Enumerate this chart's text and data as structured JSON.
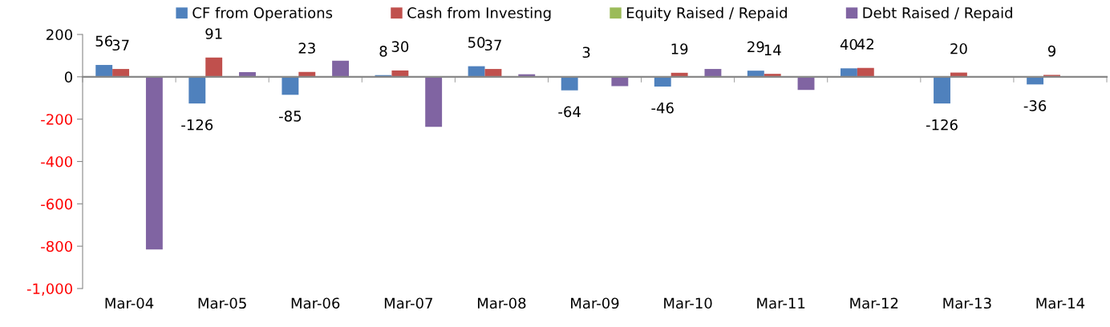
{
  "chart_data": {
    "type": "bar",
    "categories": [
      "Mar-04",
      "Mar-05",
      "Mar-06",
      "Mar-07",
      "Mar-08",
      "Mar-09",
      "Mar-10",
      "Mar-11",
      "Mar-12",
      "Mar-13",
      "Mar-14"
    ],
    "series": [
      {
        "name": "CF from Operations",
        "color": "#4f81bd",
        "values": [
          56,
          -126,
          -85,
          8,
          50,
          -64,
          -46,
          29,
          40,
          -126,
          -36
        ],
        "value_labels": [
          "56",
          "-126",
          "-85",
          "8",
          "50",
          "-64",
          "-46",
          "29",
          "40",
          "-126",
          "-36"
        ]
      },
      {
        "name": "Cash from Investing",
        "color": "#c0504d",
        "values": [
          37,
          91,
          23,
          30,
          37,
          3,
          19,
          14,
          42,
          20,
          9
        ],
        "value_labels": [
          "37",
          "91",
          "23",
          "30",
          "37",
          "3",
          "19",
          "14",
          "42",
          "20",
          "9"
        ]
      },
      {
        "name": "Equity Raised / Repaid",
        "color": "#9bbb59",
        "values": [
          0,
          0,
          0,
          0,
          0,
          0,
          0,
          0,
          0,
          0,
          0
        ]
      },
      {
        "name": "Debt Raised / Repaid",
        "color": "#8064a2",
        "values": [
          -815,
          22,
          76,
          -236,
          12,
          -44,
          37,
          -62,
          0,
          0,
          0
        ]
      }
    ],
    "ylim": [
      -1000,
      200
    ],
    "yticks": [
      {
        "value": -1000,
        "label": "-1,000"
      },
      -800,
      -600,
      -400,
      -200,
      0,
      200
    ],
    "legend": "top"
  }
}
